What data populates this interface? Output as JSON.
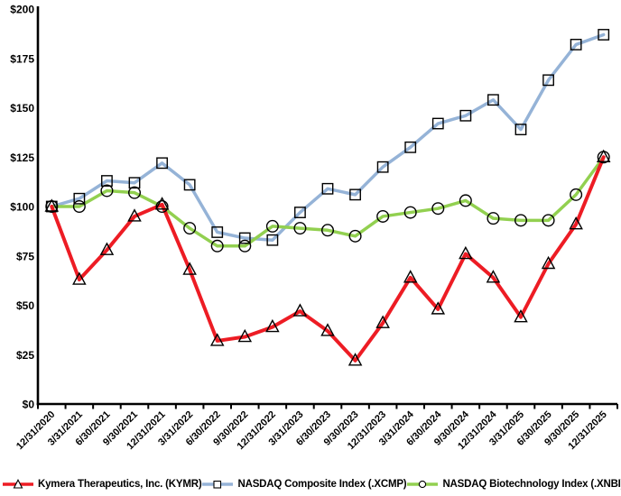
{
  "chart_data": {
    "type": "line",
    "title": "",
    "xlabel": "",
    "ylabel": "",
    "ylim": [
      0,
      200
    ],
    "y_tick_step": 25,
    "y_ticks": [
      "$0",
      "$25",
      "$50",
      "$75",
      "$100",
      "$125",
      "$150",
      "$175",
      "$200"
    ],
    "grid": false,
    "legend_position": "bottom",
    "x_labels": [
      "12/31/2020",
      "3/31/2021",
      "6/30/2021",
      "9/30/2021",
      "12/31/2021",
      "3/31/2022",
      "6/30/2022",
      "9/30/2022",
      "12/31/2022",
      "3/31/2023",
      "6/30/2023",
      "9/30/2023",
      "12/31/2023",
      "3/31/2024",
      "6/30/2024",
      "9/30/2024",
      "12/31/2024",
      "3/31/2025",
      "6/30/2025",
      "9/30/2025",
      "12/31/2025"
    ],
    "series": [
      {
        "name": "Kymera Therapeutics, Inc. (KYMR)",
        "marker": "triangle",
        "color": "#ED1C24",
        "line_width": 4,
        "values": [
          100,
          63,
          78,
          95,
          101,
          68,
          32,
          34,
          39,
          47,
          37,
          22,
          41,
          64,
          48,
          76,
          64,
          44,
          71,
          91,
          125
        ]
      },
      {
        "name": "NASDAQ Composite Index (.XCMP)",
        "marker": "square",
        "color": "#95B3D7",
        "line_width": 3.5,
        "values": [
          100,
          104,
          113,
          112,
          122,
          111,
          87,
          84,
          83,
          97,
          109,
          106,
          120,
          130,
          142,
          146,
          154,
          139,
          164,
          182,
          187
        ]
      },
      {
        "name": "NASDAQ Biotechnology Index (.XNBI)",
        "marker": "circle",
        "color": "#92D050",
        "line_width": 3.5,
        "values": [
          100,
          100,
          108,
          107,
          100,
          89,
          80,
          80,
          90,
          89,
          88,
          85,
          95,
          97,
          99,
          103,
          94,
          93,
          93,
          106,
          125
        ]
      }
    ],
    "axis_color": "#000000",
    "text_color": "#000000"
  }
}
